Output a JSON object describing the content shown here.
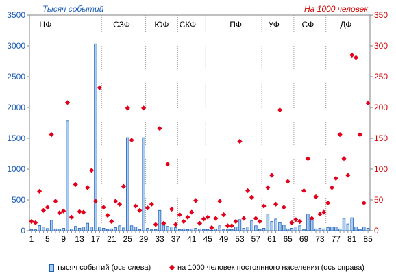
{
  "chart_data": {
    "type": "bar",
    "left_axis": {
      "unit_label": "Тысяч событий",
      "ylim": [
        0,
        3500
      ],
      "ticks": [
        0,
        500,
        1000,
        1500,
        2000,
        2500,
        3000,
        3500
      ],
      "color": "#1f5fb4"
    },
    "right_axis": {
      "unit_label": "На 1000 человек",
      "ylim": [
        0,
        350
      ],
      "ticks": [
        0,
        50,
        100,
        150,
        200,
        250,
        300,
        350
      ],
      "color": "#d40000"
    },
    "x_ticks": [
      1,
      5,
      9,
      13,
      17,
      21,
      25,
      29,
      33,
      37,
      41,
      45,
      49,
      53,
      57,
      61,
      65,
      69,
      73,
      77,
      81,
      85
    ],
    "x": [
      1,
      2,
      3,
      4,
      5,
      6,
      7,
      8,
      9,
      10,
      11,
      12,
      13,
      14,
      15,
      16,
      17,
      18,
      19,
      20,
      21,
      22,
      23,
      24,
      25,
      26,
      27,
      28,
      29,
      30,
      31,
      32,
      33,
      34,
      35,
      36,
      37,
      38,
      39,
      40,
      41,
      42,
      43,
      44,
      45,
      46,
      47,
      48,
      49,
      50,
      51,
      52,
      53,
      54,
      55,
      56,
      57,
      58,
      59,
      60,
      61,
      62,
      63,
      64,
      65,
      66,
      67,
      68,
      69,
      70,
      71,
      72,
      73,
      74,
      75,
      76,
      77,
      78,
      79,
      80,
      81,
      82,
      83,
      84,
      85
    ],
    "regions": [
      {
        "label": "ЦФ",
        "x_center": 4.5
      },
      {
        "label": "СЗФ",
        "x_center": 23.5
      },
      {
        "label": "ЮФ",
        "x_center": 33.5
      },
      {
        "label": "СКФ",
        "x_center": 40.0
      },
      {
        "label": "ПФ",
        "x_center": 52.0
      },
      {
        "label": "УФ",
        "x_center": 61.5
      },
      {
        "label": "СФ",
        "x_center": 70.0
      },
      {
        "label": "ДФ",
        "x_center": 79.5
      }
    ],
    "region_boundaries": [
      18.5,
      29.5,
      37.5,
      44.5,
      58.5,
      66.5,
      74.5
    ],
    "series": [
      {
        "name": "тысяч событий (ось слева)",
        "axis": "left",
        "color": "#a9cdf3",
        "values": [
          20,
          15,
          85,
          60,
          35,
          170,
          30,
          25,
          40,
          1780,
          25,
          70,
          40,
          60,
          120,
          60,
          3030,
          60,
          40,
          20,
          30,
          50,
          80,
          45,
          1510,
          80,
          60,
          20,
          1510,
          40,
          15,
          20,
          330,
          90,
          70,
          60,
          50,
          20,
          30,
          20,
          30,
          40,
          25,
          20,
          20,
          10,
          30,
          80,
          20,
          20,
          20,
          60,
          180,
          40,
          60,
          160,
          80,
          20,
          40,
          270,
          150,
          190,
          130,
          90,
          30,
          40,
          60,
          80,
          20,
          270,
          180,
          30,
          40,
          30,
          50,
          60,
          60,
          30,
          200,
          110,
          210,
          60,
          20,
          60,
          40
        ]
      },
      {
        "name": "на 1000 человек постоянного населения (ось справа)",
        "axis": "right",
        "color": "#e3001b",
        "values": [
          15,
          13,
          64,
          33,
          38,
          156,
          48,
          29,
          32,
          208,
          22,
          75,
          31,
          30,
          70,
          98,
          48,
          232,
          38,
          25,
          15,
          48,
          43,
          72,
          199,
          147,
          40,
          33,
          199,
          37,
          43,
          10,
          166,
          12,
          108,
          35,
          10,
          26,
          15,
          22,
          30,
          49,
          12,
          19,
          22,
          5,
          20,
          48,
          26,
          8,
          8,
          15,
          145,
          20,
          65,
          54,
          20,
          15,
          40,
          70,
          90,
          43,
          196,
          38,
          80,
          13,
          18,
          15,
          65,
          117,
          20,
          55,
          27,
          30,
          45,
          70,
          85,
          156,
          117,
          90,
          285,
          281,
          156,
          45,
          207
        ]
      }
    ],
    "legend": {
      "bar_label": "тысяч событий (ось слева)",
      "marker_label": "на 1000 человек постоянного населения (ось справа)",
      "placement": "bottom"
    }
  }
}
